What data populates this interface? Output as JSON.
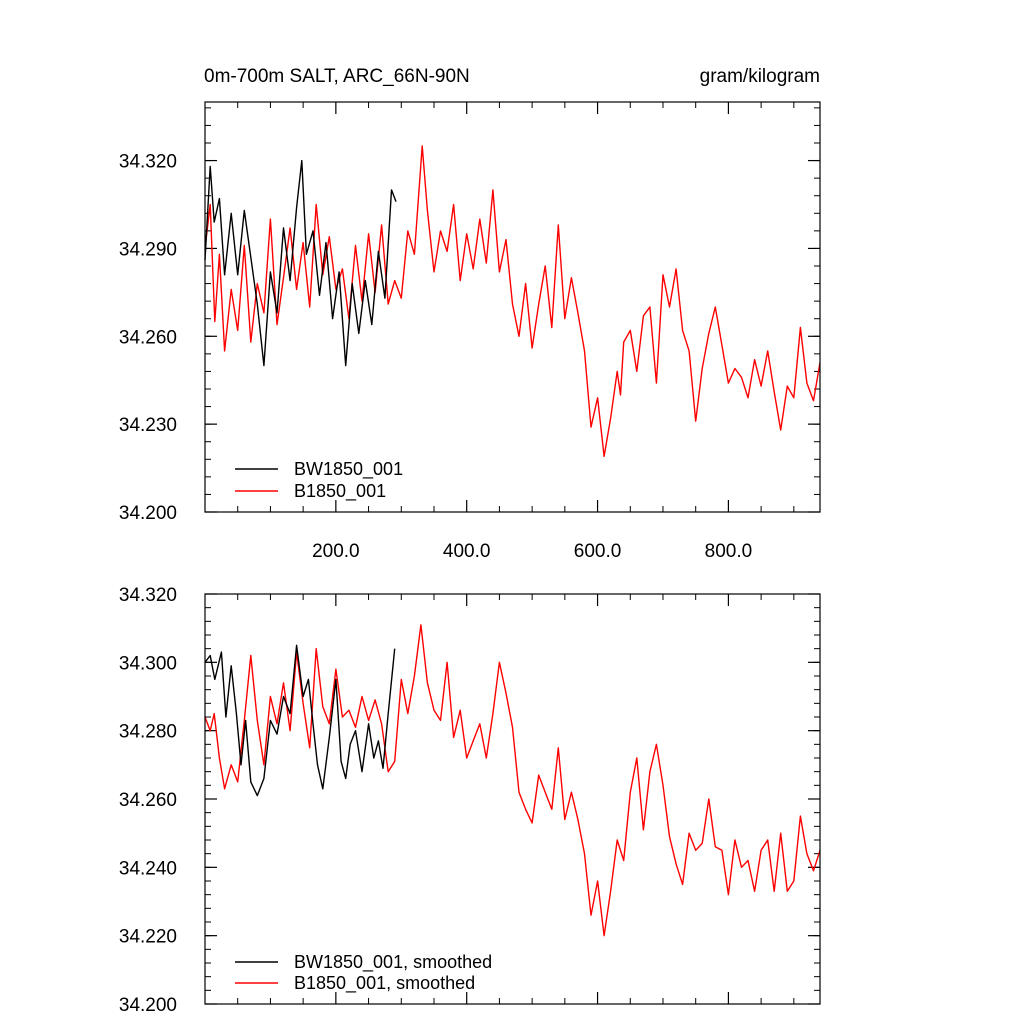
{
  "chart_data": [
    {
      "type": "line",
      "title": "0m-700m SALT, ARC_66N-90N",
      "units": "gram/kilogram",
      "xlim": [
        0,
        940
      ],
      "ylim": [
        34.2,
        34.34
      ],
      "yticks": [
        34.2,
        34.23,
        34.26,
        34.29,
        34.32
      ],
      "ytick_labels": [
        "34.200",
        "34.230",
        "34.260",
        "34.290",
        "34.320"
      ],
      "xticks": [
        200,
        400,
        600,
        800
      ],
      "xtick_labels": [
        "200.0",
        "400.0",
        "600.0",
        "800.0"
      ],
      "legend": [
        "BW1850_001",
        "B1850_001"
      ],
      "legend_position": "bottom-left",
      "series": [
        {
          "name": "BW1850_001",
          "color": "#000000",
          "x": [
            0,
            8,
            14,
            22,
            30,
            40,
            50,
            60,
            70,
            80,
            90,
            100,
            110,
            120,
            130,
            140,
            148,
            155,
            165,
            175,
            185,
            195,
            205,
            215,
            225,
            235,
            245,
            255,
            265,
            275,
            285,
            292
          ],
          "y": [
            34.286,
            34.318,
            34.299,
            34.307,
            34.281,
            34.302,
            34.281,
            34.303,
            34.287,
            34.271,
            34.25,
            34.282,
            34.268,
            34.297,
            34.279,
            34.304,
            34.32,
            34.288,
            34.296,
            34.274,
            34.292,
            34.266,
            34.282,
            34.25,
            34.278,
            34.261,
            34.279,
            34.264,
            34.289,
            34.273,
            34.31,
            34.306
          ]
        },
        {
          "name": "B1850_001",
          "color": "#ff0000",
          "x": [
            0,
            8,
            15,
            22,
            30,
            40,
            50,
            60,
            70,
            80,
            90,
            100,
            110,
            120,
            130,
            140,
            150,
            160,
            170,
            180,
            190,
            200,
            210,
            220,
            230,
            240,
            250,
            260,
            270,
            280,
            290,
            300,
            310,
            320,
            332,
            340,
            350,
            360,
            370,
            380,
            390,
            400,
            410,
            420,
            430,
            440,
            450,
            460,
            470,
            480,
            490,
            500,
            510,
            520,
            530,
            540,
            550,
            560,
            570,
            580,
            590,
            600,
            610,
            620,
            630,
            635,
            640,
            650,
            660,
            670,
            680,
            690,
            700,
            710,
            720,
            730,
            740,
            750,
            760,
            770,
            780,
            790,
            800,
            810,
            820,
            830,
            840,
            850,
            860,
            870,
            880,
            890,
            900,
            910,
            920,
            930,
            940
          ],
          "y": [
            34.29,
            34.305,
            34.265,
            34.288,
            34.255,
            34.276,
            34.262,
            34.291,
            34.258,
            34.278,
            34.268,
            34.3,
            34.264,
            34.28,
            34.297,
            34.276,
            34.292,
            34.27,
            34.305,
            34.281,
            34.294,
            34.276,
            34.283,
            34.266,
            34.291,
            34.272,
            34.295,
            34.275,
            34.298,
            34.271,
            34.279,
            34.273,
            34.296,
            34.288,
            34.325,
            34.303,
            34.282,
            34.296,
            34.289,
            34.305,
            34.279,
            34.295,
            34.283,
            34.3,
            34.285,
            34.31,
            34.282,
            34.293,
            34.271,
            34.26,
            34.278,
            34.256,
            34.271,
            34.284,
            34.263,
            34.298,
            34.266,
            34.28,
            34.268,
            34.255,
            34.229,
            34.239,
            34.219,
            34.232,
            34.248,
            34.24,
            34.258,
            34.262,
            34.248,
            34.267,
            34.27,
            34.244,
            34.281,
            34.27,
            34.283,
            34.262,
            34.255,
            34.231,
            34.249,
            34.261,
            34.27,
            34.257,
            34.244,
            34.249,
            34.246,
            34.239,
            34.252,
            34.243,
            34.255,
            34.241,
            34.228,
            34.243,
            34.239,
            34.263,
            34.244,
            34.238,
            34.251
          ]
        }
      ]
    },
    {
      "type": "line",
      "title": "",
      "xlim": [
        0,
        940
      ],
      "ylim": [
        34.2,
        34.32
      ],
      "yticks": [
        34.2,
        34.22,
        34.24,
        34.26,
        34.28,
        34.3,
        34.32
      ],
      "ytick_labels": [
        "34.200",
        "34.220",
        "34.240",
        "34.260",
        "34.280",
        "34.300",
        "34.320"
      ],
      "xticks": [
        200,
        400,
        600,
        800
      ],
      "legend": [
        "BW1850_001, smoothed",
        "B1850_001, smoothed"
      ],
      "legend_position": "bottom-left",
      "series": [
        {
          "name": "BW1850_001, smoothed",
          "color": "#000000",
          "x": [
            0,
            8,
            15,
            25,
            32,
            40,
            48,
            55,
            62,
            70,
            80,
            90,
            100,
            110,
            120,
            130,
            140,
            150,
            158,
            165,
            172,
            180,
            190,
            200,
            208,
            215,
            222,
            230,
            240,
            250,
            258,
            265,
            272,
            280,
            290
          ],
          "y": [
            34.3,
            34.302,
            34.295,
            34.303,
            34.284,
            34.299,
            34.285,
            34.27,
            34.283,
            34.265,
            34.261,
            34.266,
            34.283,
            34.279,
            34.29,
            34.285,
            34.305,
            34.29,
            34.295,
            34.282,
            34.27,
            34.263,
            34.278,
            34.295,
            34.271,
            34.266,
            34.276,
            34.28,
            34.268,
            34.282,
            34.272,
            34.277,
            34.269,
            34.285,
            34.304
          ]
        },
        {
          "name": "B1850_001, smoothed",
          "color": "#ff0000",
          "x": [
            0,
            8,
            14,
            22,
            30,
            40,
            50,
            60,
            70,
            80,
            90,
            100,
            110,
            120,
            130,
            140,
            150,
            160,
            170,
            180,
            190,
            200,
            210,
            220,
            230,
            240,
            250,
            260,
            270,
            280,
            290,
            300,
            310,
            320,
            330,
            340,
            350,
            360,
            370,
            380,
            390,
            400,
            410,
            420,
            430,
            440,
            450,
            460,
            470,
            480,
            490,
            500,
            510,
            520,
            530,
            540,
            550,
            560,
            570,
            580,
            590,
            600,
            610,
            620,
            630,
            640,
            650,
            660,
            670,
            680,
            690,
            700,
            710,
            720,
            730,
            740,
            750,
            760,
            770,
            780,
            790,
            800,
            810,
            820,
            830,
            840,
            850,
            860,
            870,
            880,
            890,
            900,
            910,
            920,
            930,
            940
          ],
          "y": [
            34.284,
            34.28,
            34.285,
            34.272,
            34.263,
            34.27,
            34.265,
            34.283,
            34.302,
            34.283,
            34.27,
            34.29,
            34.282,
            34.294,
            34.28,
            34.303,
            34.288,
            34.275,
            34.304,
            34.287,
            34.282,
            34.298,
            34.284,
            34.286,
            34.281,
            34.29,
            34.283,
            34.289,
            34.282,
            34.268,
            34.271,
            34.295,
            34.285,
            34.296,
            34.311,
            34.294,
            34.286,
            34.283,
            34.3,
            34.278,
            34.286,
            34.272,
            34.277,
            34.282,
            34.272,
            34.285,
            34.3,
            34.291,
            34.281,
            34.262,
            34.257,
            34.253,
            34.267,
            34.262,
            34.257,
            34.275,
            34.254,
            34.262,
            34.254,
            34.244,
            34.226,
            34.236,
            34.22,
            34.233,
            34.248,
            34.242,
            34.262,
            34.272,
            34.251,
            34.268,
            34.276,
            34.264,
            34.249,
            34.241,
            34.235,
            34.25,
            34.245,
            34.247,
            34.26,
            34.246,
            34.245,
            34.232,
            34.248,
            34.24,
            34.242,
            34.233,
            34.245,
            34.248,
            34.233,
            34.25,
            34.233,
            34.236,
            34.255,
            34.244,
            34.239,
            34.245
          ]
        }
      ]
    }
  ]
}
